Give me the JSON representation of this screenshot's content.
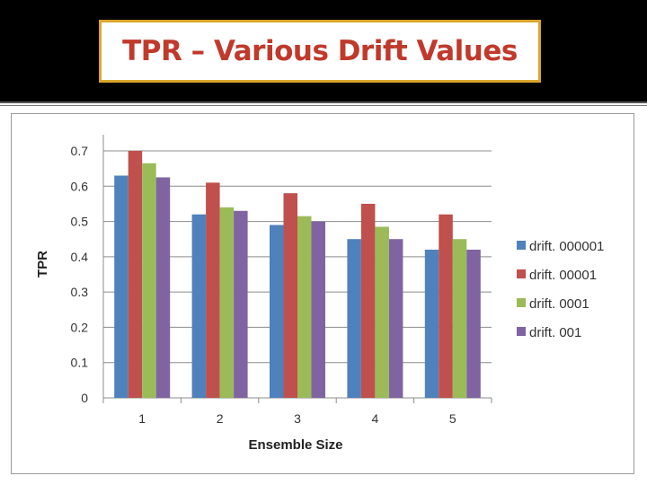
{
  "slide": {
    "title": "TPR – Various Drift Values"
  },
  "colors": {
    "title_text": "#c0392b",
    "title_border": "#d9a62a",
    "top_band": "#000000"
  },
  "chart_data": {
    "type": "bar",
    "title": "",
    "xlabel": "Ensemble Size",
    "ylabel": "TPR",
    "categories": [
      "1",
      "2",
      "3",
      "4",
      "5"
    ],
    "ylim": [
      0,
      0.7
    ],
    "yticks": [
      "0",
      "0.1",
      "0.2",
      "0.3",
      "0.4",
      "0.5",
      "0.6",
      "0.7"
    ],
    "grid": true,
    "legend_position": "right",
    "series": [
      {
        "name": "drift. 000001",
        "color": "#4f81bd",
        "values": [
          0.63,
          0.52,
          0.49,
          0.45,
          0.42
        ]
      },
      {
        "name": "drift. 00001",
        "color": "#c0504d",
        "values": [
          0.7,
          0.61,
          0.58,
          0.55,
          0.52
        ]
      },
      {
        "name": "drift. 0001",
        "color": "#9bbb59",
        "values": [
          0.665,
          0.54,
          0.515,
          0.485,
          0.45
        ]
      },
      {
        "name": "drift. 001",
        "color": "#8064a2",
        "values": [
          0.625,
          0.53,
          0.5,
          0.45,
          0.42
        ]
      }
    ]
  }
}
